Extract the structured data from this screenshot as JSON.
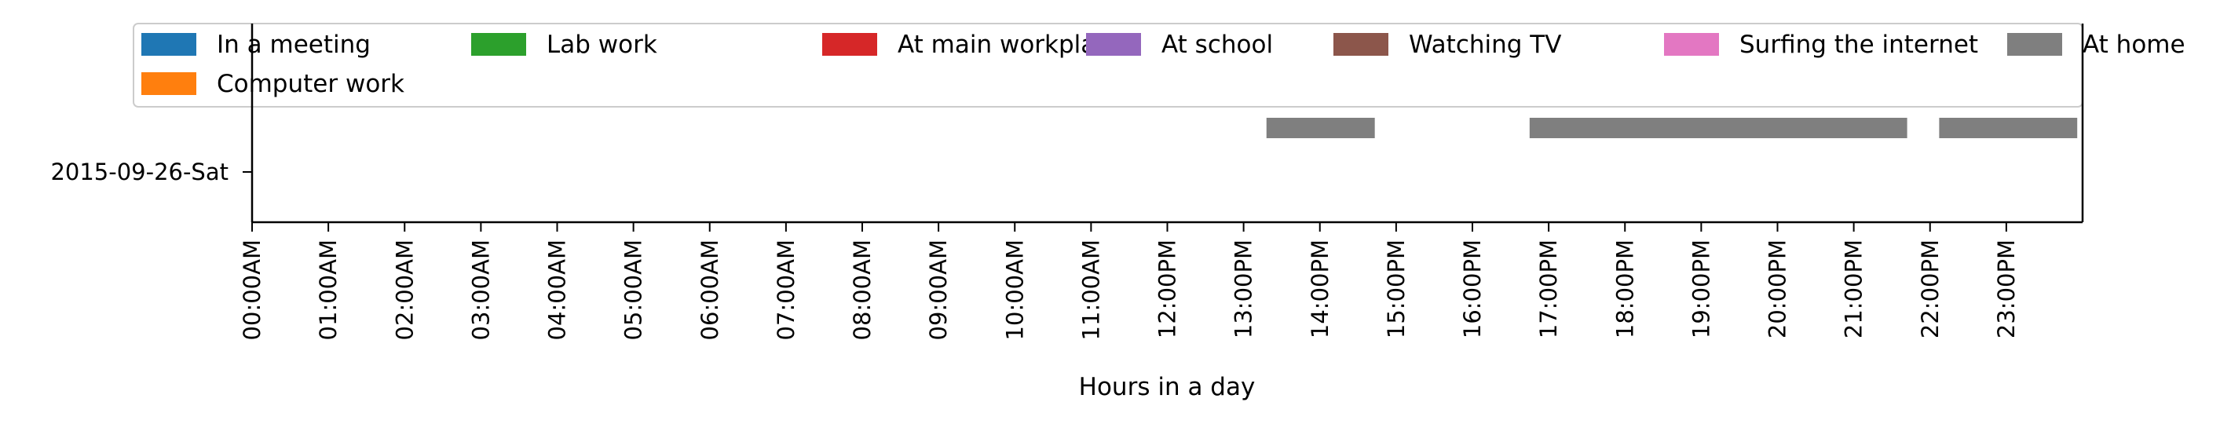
{
  "chart_data": {
    "type": "timeline",
    "ylabel": "",
    "xlabel": "Hours in a day",
    "xlim": [
      0,
      24
    ],
    "grid": false,
    "legend_placement": "top",
    "x_tick_values": [
      0,
      1,
      2,
      3,
      4,
      5,
      6,
      7,
      8,
      9,
      10,
      11,
      12,
      13,
      14,
      15,
      16,
      17,
      18,
      19,
      20,
      21,
      22,
      23
    ],
    "x_tick_labels": [
      "00:00AM",
      "01:00AM",
      "02:00AM",
      "03:00AM",
      "04:00AM",
      "05:00AM",
      "06:00AM",
      "07:00AM",
      "08:00AM",
      "09:00AM",
      "10:00AM",
      "11:00AM",
      "12:00PM",
      "13:00PM",
      "14:00PM",
      "15:00PM",
      "16:00PM",
      "17:00PM",
      "18:00PM",
      "19:00PM",
      "20:00PM",
      "21:00PM",
      "22:00PM",
      "23:00PM"
    ],
    "categories": [
      "2015-09-26-Sat"
    ],
    "legend": [
      {
        "name": "In a meeting",
        "color": "#1f77b4"
      },
      {
        "name": "Lab work",
        "color": "#2ca02c"
      },
      {
        "name": "At main workplace",
        "color": "#d62728"
      },
      {
        "name": "At school",
        "color": "#9467bd"
      },
      {
        "name": "Watching TV",
        "color": "#8c564b"
      },
      {
        "name": "Surfing the internet",
        "color": "#e377c2"
      },
      {
        "name": "At home",
        "color": "#7f7f7f"
      },
      {
        "name": "Computer work",
        "color": "#ff7f0e"
      }
    ],
    "series": [
      {
        "name": "At home",
        "color": "#7f7f7f",
        "category": "2015-09-26-Sat",
        "intervals": [
          [
            13.3,
            14.72
          ],
          [
            16.75,
            21.7
          ],
          [
            22.12,
            23.93
          ]
        ]
      }
    ]
  }
}
